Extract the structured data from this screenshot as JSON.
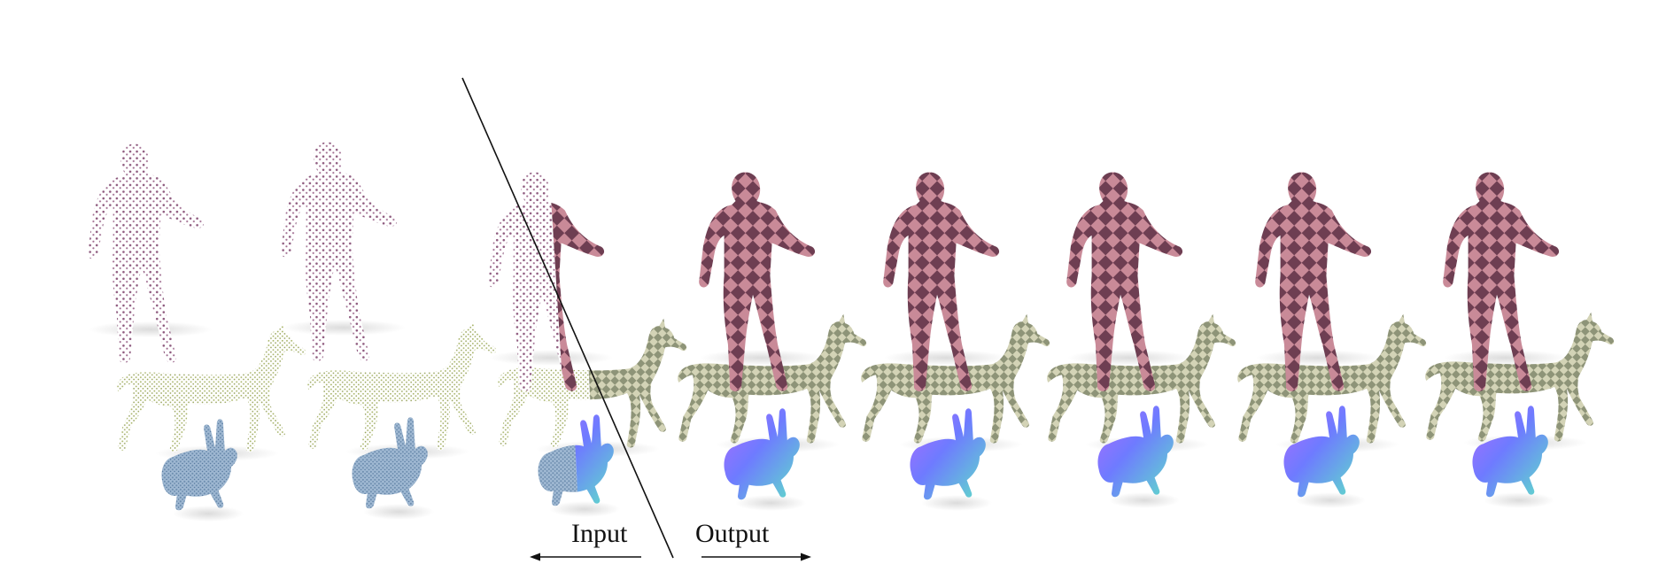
{
  "figure": {
    "caption_input": "Input",
    "caption_output": "Output",
    "frames": [
      {
        "stage": "input",
        "human": "point-cloud",
        "deer": "point-cloud",
        "bunny": "point-cloud"
      },
      {
        "stage": "input",
        "human": "point-cloud",
        "deer": "point-cloud",
        "bunny": "point-cloud"
      },
      {
        "stage": "split",
        "human": "half-mesh",
        "deer": "half-mesh",
        "bunny": "half-mesh"
      },
      {
        "stage": "output",
        "human": "mesh",
        "deer": "mesh",
        "bunny": "mesh"
      },
      {
        "stage": "output",
        "human": "mesh",
        "deer": "mesh",
        "bunny": "mesh"
      },
      {
        "stage": "output",
        "human": "mesh",
        "deer": "mesh",
        "bunny": "mesh"
      },
      {
        "stage": "output",
        "human": "mesh",
        "deer": "mesh",
        "bunny": "mesh"
      },
      {
        "stage": "output",
        "human": "mesh",
        "deer": "mesh",
        "bunny": "mesh"
      }
    ],
    "colors": {
      "human_points": "#8e5a7e",
      "human_mesh": "#c98a98",
      "human_mesh_dark": "#6e3e52",
      "deer_points": "#a9b56a",
      "deer_mesh": "#c9c9a6",
      "deer_mesh_dark": "#8e9478",
      "bunny_points": "#7f9fbf",
      "bunny_mesh_a": "#6e7bff",
      "bunny_mesh_b": "#5fe0c8",
      "bunny_mesh_c": "#b06cff",
      "divider": "#111111"
    }
  }
}
